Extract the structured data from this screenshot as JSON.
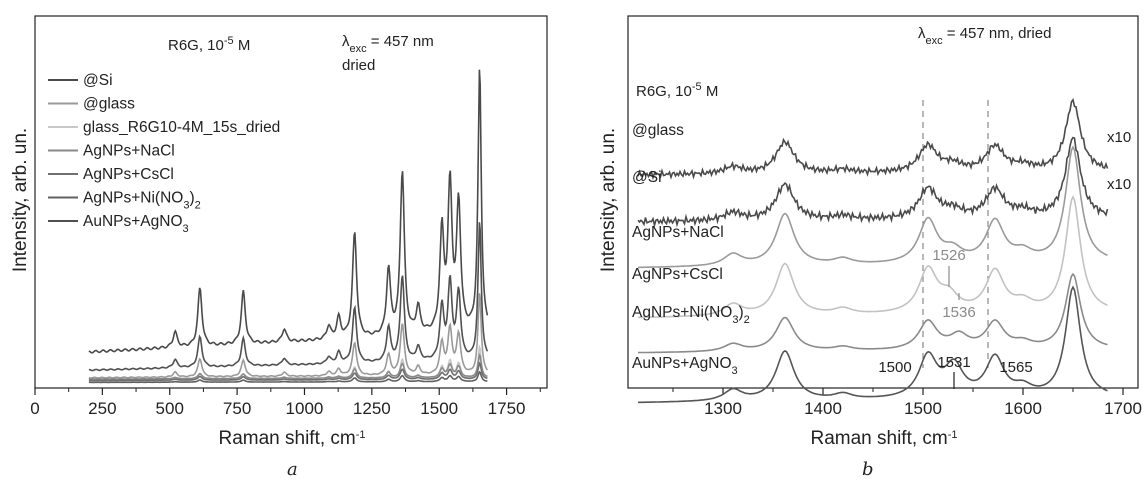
{
  "chart_data": [
    {
      "type": "line",
      "panel_label": "a",
      "xlabel": "Raman shift, cm",
      "xlabel_sup": "-1",
      "ylabel": "Intensity, arb. un.",
      "xlim": [
        0,
        1900
      ],
      "x_ticks": [
        0,
        250,
        500,
        750,
        1000,
        1250,
        1500,
        1750
      ],
      "x_range": [
        200,
        1680
      ],
      "grid": false,
      "legend_placement": "top-left",
      "annotations": {
        "sample": {
          "text": "R6G, 10",
          "sup": "-5",
          "after": " M"
        },
        "lambda": {
          "text": "λ",
          "sub": "exc",
          "after": " = 457 nm"
        },
        "state": "dried"
      },
      "baseline_colors": [
        "#4a4a4a",
        "#9a9a9a",
        "#c8c8c8",
        "#8a8a8a",
        "#707070",
        "#606060",
        "#505050"
      ],
      "series": [
        {
          "name": "@Si",
          "color": "#4a4a4a",
          "offset": 0.1,
          "gain": 0.8,
          "slope": 0.06
        },
        {
          "name": "@glass",
          "color": "#9a9a9a",
          "offset": 0.022,
          "gain": 0.25,
          "slope": 0.008
        },
        {
          "name": "glass_R6G10-4M_15s_dried",
          "color": "#c8c8c8",
          "offset": 0.012,
          "gain": 0.1,
          "slope": 0.004
        },
        {
          "name": "AgNPs+NaCl",
          "color": "#8a8a8a",
          "offset": 0.018,
          "gain": 0.07,
          "slope": 0.004
        },
        {
          "name": "AgNPs+CsCl",
          "color": "#707070",
          "offset": 0.014,
          "gain": 0.05,
          "slope": 0.003
        },
        {
          "name": "AgNPs+Ni(NO",
          "name_sub": "3",
          "name_after": ")",
          "name_sub2": "2",
          "color": "#606060",
          "offset": 0.008,
          "gain": 0.03,
          "slope": 0.002
        },
        {
          "name": "AuNPs+AgNO",
          "name_sub": "3",
          "name_after": "",
          "color": "#505050",
          "offset": 0.045,
          "gain": 0.42,
          "slope": 0.03
        }
      ],
      "peaks": [
        {
          "x": 520,
          "h": 0.06
        },
        {
          "x": 612,
          "h": 0.22
        },
        {
          "x": 773,
          "h": 0.2
        },
        {
          "x": 925,
          "h": 0.05
        },
        {
          "x": 1090,
          "h": 0.05
        },
        {
          "x": 1127,
          "h": 0.08
        },
        {
          "x": 1186,
          "h": 0.4
        },
        {
          "x": 1312,
          "h": 0.25
        },
        {
          "x": 1363,
          "h": 0.62
        },
        {
          "x": 1422,
          "h": 0.1
        },
        {
          "x": 1510,
          "h": 0.38
        },
        {
          "x": 1540,
          "h": 0.55
        },
        {
          "x": 1572,
          "h": 0.48
        },
        {
          "x": 1650,
          "h": 1.0
        }
      ]
    },
    {
      "type": "line",
      "panel_label": "b",
      "xlabel": "Raman shift, cm",
      "xlabel_sup": "-1",
      "ylabel": "Intensity, arb. un.",
      "xlim": [
        1205,
        1715
      ],
      "x_ticks": [
        1300,
        1400,
        1500,
        1600,
        1700
      ],
      "x_range": [
        1215,
        1685
      ],
      "grid": false,
      "annotations": {
        "lambda": {
          "text": "λ",
          "sub": "exc",
          "after": " = 457 nm, dried"
        },
        "sample": {
          "text": "R6G, 10",
          "sup": "-5",
          "after": " M"
        },
        "dashed_lines": [
          1500,
          1565
        ],
        "peak_labels": [
          {
            "text": "1526",
            "x": 1526,
            "color": "#8a8a8a"
          },
          {
            "text": "1536",
            "x": 1536,
            "color": "#8a8a8a"
          },
          {
            "text": "1500",
            "x": 1500,
            "color": "#222222"
          },
          {
            "text": "1531",
            "x": 1531,
            "color": "#222222"
          },
          {
            "text": "1565",
            "x": 1565,
            "color": "#222222"
          }
        ],
        "multiplier": "x10"
      },
      "series": [
        {
          "name": "@glass",
          "color": "#4a4a4a",
          "multiplier": "x10",
          "noise": true,
          "base": 0.83
        },
        {
          "name": "@Si",
          "color": "#4a4a4a",
          "multiplier": "x10",
          "noise": true,
          "base": 0.66
        },
        {
          "name": "AgNPs+NaCl",
          "color": "#9a9a9a",
          "base": 0.48
        },
        {
          "name": "AgNPs+CsCl",
          "color": "#c2c2c2",
          "base": 0.34
        },
        {
          "name": "AgNPs+Ni(NO",
          "name_sub": "3",
          "name_after": ")",
          "name_sub2": "2",
          "color": "#8a8a8a",
          "base": 0.22
        },
        {
          "name": "AuNPs+AgNO",
          "name_sub": "3",
          "name_after": "",
          "color": "#555555",
          "base": 0.02
        }
      ],
      "peaks": [
        {
          "x": 1310,
          "h": 0.1
        },
        {
          "x": 1362,
          "h": 0.45
        },
        {
          "x": 1420,
          "h": 0.05
        },
        {
          "x": 1505,
          "h": 0.38
        },
        {
          "x": 1530,
          "h": 0.1
        },
        {
          "x": 1572,
          "h": 0.36
        },
        {
          "x": 1600,
          "h": 0.08
        },
        {
          "x": 1650,
          "h": 1.0
        }
      ]
    }
  ]
}
